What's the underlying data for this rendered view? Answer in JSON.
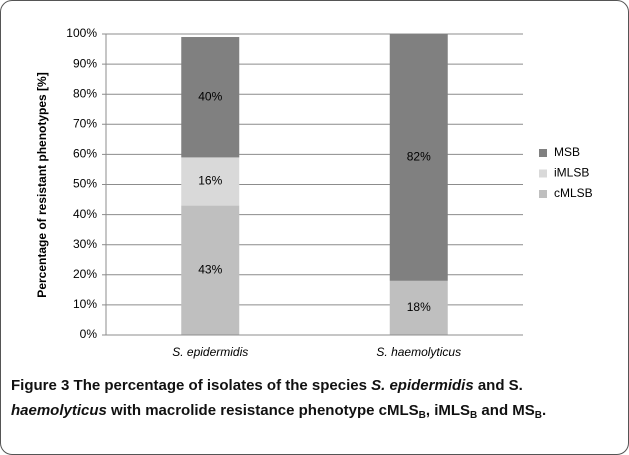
{
  "chart_data": {
    "type": "stacked_bar",
    "ylabel": "Percentage of resistant phenotypes [%]",
    "categories": [
      "S. epidermidis",
      "S. haemolyticus"
    ],
    "series": [
      {
        "name": "cMLSB",
        "color": "#bfbfbf",
        "values": [
          43,
          18
        ],
        "value_labels": [
          "43%",
          "18%"
        ]
      },
      {
        "name": "iMLSB",
        "color": "#d9d9d9",
        "values": [
          16,
          0
        ],
        "value_labels": [
          "16%",
          null
        ]
      },
      {
        "name": "MSB",
        "color": "#808080",
        "values": [
          40,
          82
        ],
        "value_labels": [
          "40%",
          "82%"
        ]
      }
    ],
    "ylim": [
      0,
      100
    ],
    "yticks": [
      {
        "value": 0,
        "label": "0%"
      },
      {
        "value": 10,
        "label": "10%"
      },
      {
        "value": 20,
        "label": "20%"
      },
      {
        "value": 30,
        "label": "30%"
      },
      {
        "value": 40,
        "label": "40%"
      },
      {
        "value": 50,
        "label": "50%"
      },
      {
        "value": 60,
        "label": "60%"
      },
      {
        "value": 70,
        "label": "70%"
      },
      {
        "value": 80,
        "label": "80%"
      },
      {
        "value": 90,
        "label": "90%"
      },
      {
        "value": 100,
        "label": "100%"
      }
    ],
    "grid": true,
    "legend": "right"
  },
  "caption": [
    "Figure 3",
    " The percentage of isolates of the species ",
    "S. epidermidis",
    " and S. ",
    "haemolyticus",
    " with macrolide resistance phenotype cMLS",
    "B",
    ", iMLS",
    "B",
    " and MS",
    "B",
    "."
  ]
}
